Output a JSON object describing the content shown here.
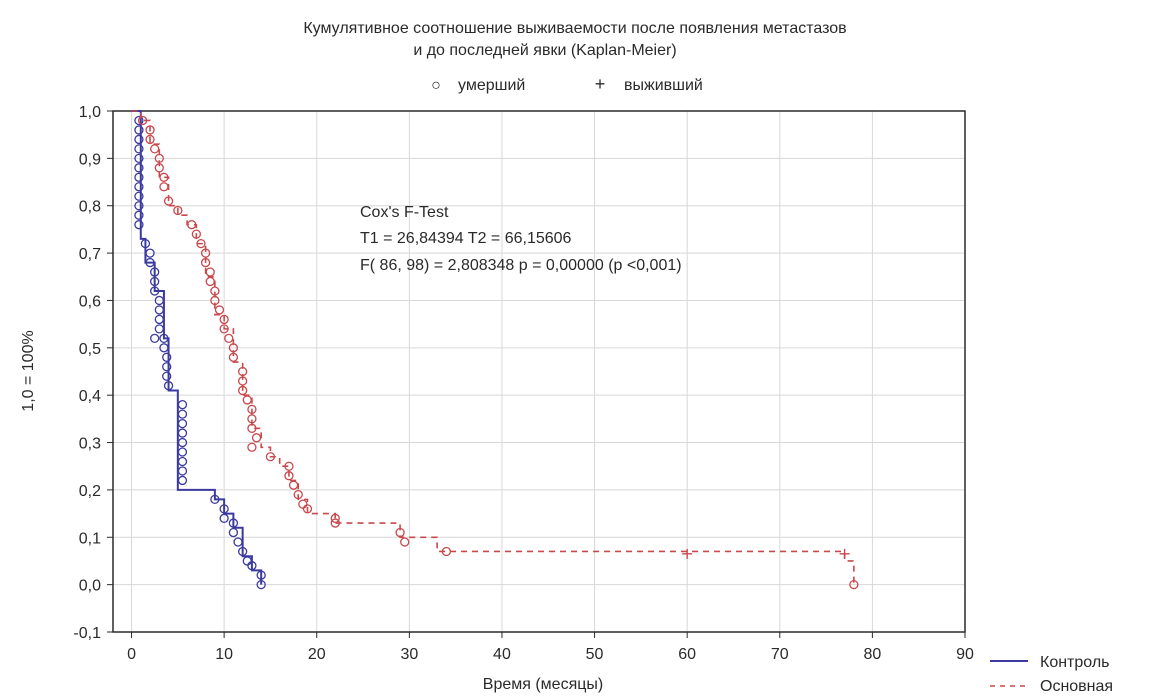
{
  "chart_data": {
    "type": "line",
    "title": "Кумулятивное соотношение выживаемости после появления метастазов",
    "subtitle": "и до последней явки (Kaplan-Meier)",
    "markers_legend": [
      {
        "symbol": "○",
        "label": "умерший"
      },
      {
        "symbol": "+",
        "label": "выживший"
      }
    ],
    "annotation": {
      "line1": "Cox's F-Test",
      "line2": "T1 = 26,84394 T2 = 66,15606",
      "line3": "F( 86, 98) = 2,808348 p = 0,00000 (p <0,001)"
    },
    "xlabel": "Время (месяцы)",
    "ylabel": "1,0 = 100%",
    "xlim": [
      -2,
      90
    ],
    "ylim": [
      -0.1,
      1.0
    ],
    "x_ticks": [
      "0",
      "10",
      "20",
      "30",
      "40",
      "50",
      "60",
      "70",
      "80",
      "90"
    ],
    "y_ticks": [
      "-0,1",
      "0,0",
      "0,1",
      "0,2",
      "0,3",
      "0,4",
      "0,5",
      "0,6",
      "0,7",
      "0,8",
      "0,9",
      "1,0"
    ],
    "grid": true,
    "legend_position": "bottom-right",
    "series": [
      {
        "name": "Контроль",
        "color": "#3a3aa0",
        "style": "solid",
        "steps": [
          [
            0,
            1.0
          ],
          [
            1,
            0.73
          ],
          [
            1.5,
            0.68
          ],
          [
            2.5,
            0.62
          ],
          [
            3.5,
            0.52
          ],
          [
            4,
            0.41
          ],
          [
            5,
            0.2
          ],
          [
            9,
            0.18
          ],
          [
            10,
            0.15
          ],
          [
            11,
            0.12
          ],
          [
            12,
            0.06
          ],
          [
            13,
            0.03
          ],
          [
            14,
            0.0
          ]
        ],
        "end_x": 14,
        "censored_x": [],
        "events": [
          [
            0.8,
            0.98
          ],
          [
            0.8,
            0.96
          ],
          [
            0.8,
            0.94
          ],
          [
            0.8,
            0.92
          ],
          [
            0.8,
            0.9
          ],
          [
            0.8,
            0.88
          ],
          [
            0.8,
            0.86
          ],
          [
            0.8,
            0.84
          ],
          [
            0.8,
            0.82
          ],
          [
            0.8,
            0.8
          ],
          [
            0.8,
            0.78
          ],
          [
            0.8,
            0.76
          ],
          [
            1.5,
            0.72
          ],
          [
            2.0,
            0.7
          ],
          [
            2.0,
            0.68
          ],
          [
            2.5,
            0.66
          ],
          [
            2.5,
            0.64
          ],
          [
            2.5,
            0.62
          ],
          [
            3.0,
            0.6
          ],
          [
            3.0,
            0.58
          ],
          [
            3.0,
            0.56
          ],
          [
            3.0,
            0.54
          ],
          [
            2.5,
            0.52
          ],
          [
            3.5,
            0.52
          ],
          [
            3.5,
            0.5
          ],
          [
            3.8,
            0.48
          ],
          [
            3.8,
            0.46
          ],
          [
            3.8,
            0.44
          ],
          [
            4.0,
            0.42
          ],
          [
            5.5,
            0.38
          ],
          [
            5.5,
            0.36
          ],
          [
            5.5,
            0.34
          ],
          [
            5.5,
            0.32
          ],
          [
            5.5,
            0.3
          ],
          [
            5.5,
            0.28
          ],
          [
            5.5,
            0.26
          ],
          [
            5.5,
            0.24
          ],
          [
            5.5,
            0.22
          ],
          [
            9,
            0.18
          ],
          [
            10,
            0.16
          ],
          [
            10,
            0.14
          ],
          [
            11,
            0.13
          ],
          [
            11,
            0.11
          ],
          [
            11.5,
            0.09
          ],
          [
            12,
            0.07
          ],
          [
            12.5,
            0.05
          ],
          [
            13,
            0.04
          ],
          [
            14,
            0.02
          ],
          [
            14,
            0.0
          ]
        ]
      },
      {
        "name": "Основная",
        "color": "#c8484c",
        "style": "dashed",
        "steps": [
          [
            0,
            1.0
          ],
          [
            1,
            0.98
          ],
          [
            2,
            0.93
          ],
          [
            3,
            0.86
          ],
          [
            4,
            0.8
          ],
          [
            5,
            0.78
          ],
          [
            6,
            0.76
          ],
          [
            7,
            0.72
          ],
          [
            8,
            0.65
          ],
          [
            9,
            0.57
          ],
          [
            10,
            0.54
          ],
          [
            11,
            0.47
          ],
          [
            12,
            0.4
          ],
          [
            13,
            0.33
          ],
          [
            14,
            0.29
          ],
          [
            15,
            0.27
          ],
          [
            16,
            0.25
          ],
          [
            17,
            0.22
          ],
          [
            18,
            0.18
          ],
          [
            19,
            0.15
          ],
          [
            22,
            0.13
          ],
          [
            29,
            0.1
          ],
          [
            33,
            0.07
          ],
          [
            77,
            0.05
          ],
          [
            78,
            0.0
          ]
        ],
        "end_x": 78,
        "censored_x": [
          [
            60,
            0.065
          ],
          [
            77,
            0.065
          ]
        ],
        "events": [
          [
            1.2,
            0.98
          ],
          [
            2,
            0.96
          ],
          [
            2,
            0.94
          ],
          [
            2.5,
            0.92
          ],
          [
            3,
            0.9
          ],
          [
            3,
            0.88
          ],
          [
            3.5,
            0.86
          ],
          [
            3.5,
            0.84
          ],
          [
            4,
            0.81
          ],
          [
            5,
            0.79
          ],
          [
            6.5,
            0.76
          ],
          [
            7,
            0.74
          ],
          [
            7.5,
            0.72
          ],
          [
            8,
            0.7
          ],
          [
            8,
            0.68
          ],
          [
            8.5,
            0.66
          ],
          [
            8.5,
            0.64
          ],
          [
            9,
            0.62
          ],
          [
            9,
            0.6
          ],
          [
            9.5,
            0.58
          ],
          [
            10,
            0.56
          ],
          [
            10,
            0.54
          ],
          [
            10.5,
            0.52
          ],
          [
            11,
            0.5
          ],
          [
            11,
            0.48
          ],
          [
            12,
            0.45
          ],
          [
            12,
            0.43
          ],
          [
            12,
            0.41
          ],
          [
            12.5,
            0.39
          ],
          [
            13,
            0.37
          ],
          [
            13,
            0.35
          ],
          [
            13,
            0.33
          ],
          [
            13.5,
            0.31
          ],
          [
            13,
            0.29
          ],
          [
            15,
            0.27
          ],
          [
            17,
            0.25
          ],
          [
            17,
            0.23
          ],
          [
            17.5,
            0.21
          ],
          [
            18,
            0.19
          ],
          [
            18.5,
            0.17
          ],
          [
            19,
            0.16
          ],
          [
            22,
            0.14
          ],
          [
            22,
            0.13
          ],
          [
            29,
            0.11
          ],
          [
            29.5,
            0.09
          ],
          [
            34,
            0.07
          ],
          [
            78,
            0.0
          ]
        ]
      }
    ]
  }
}
